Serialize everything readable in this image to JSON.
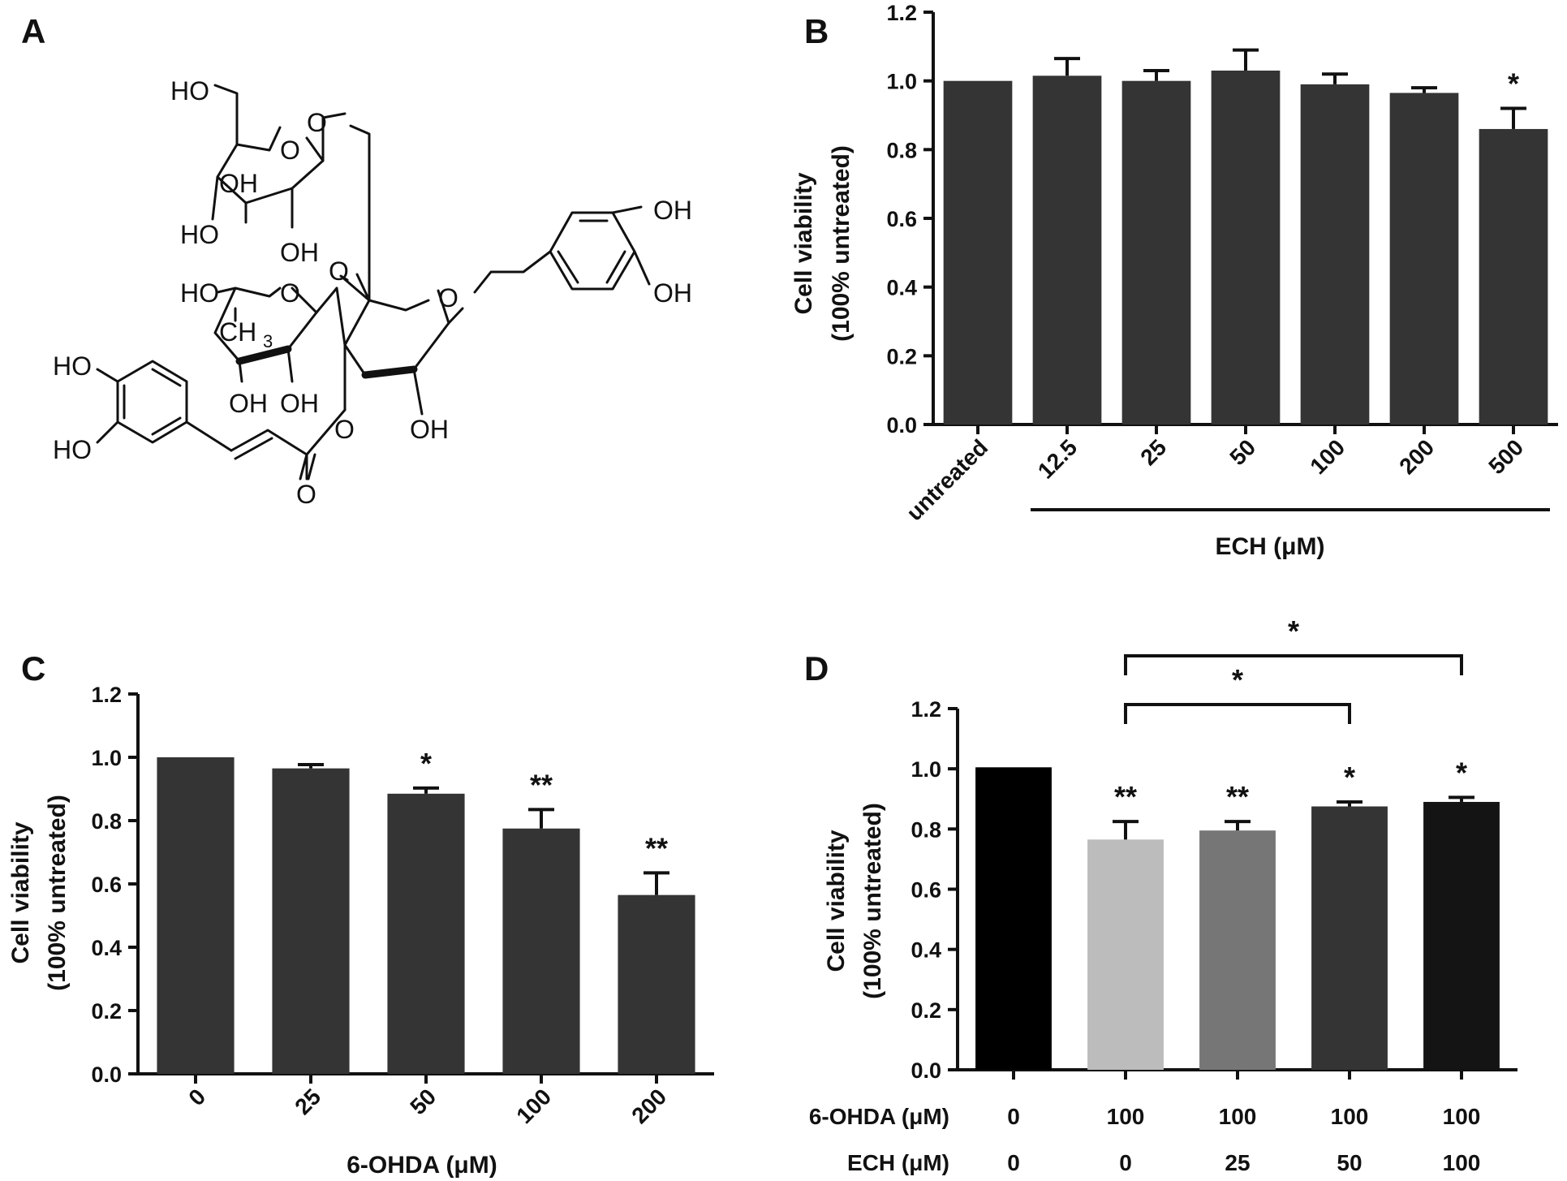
{
  "chart_data": [
    {
      "panel": "A",
      "type": "other",
      "content": "chemical structure",
      "atom_labels": [
        "HO",
        "O",
        "OH",
        "HO",
        "OH",
        "O",
        "OH",
        "OH",
        "HO",
        "O",
        "O",
        "CH",
        "3",
        "HO",
        "OH",
        "OH",
        "HO",
        "O",
        "O",
        "OH",
        "O"
      ]
    },
    {
      "panel": "B",
      "type": "bar",
      "categories": [
        "untreated",
        "12.5",
        "25",
        "50",
        "100",
        "200",
        "500"
      ],
      "group_label": "ECH (μM)",
      "values": [
        1.0,
        1.015,
        1.0,
        1.03,
        0.99,
        0.965,
        0.86
      ],
      "errors": [
        0.0,
        0.05,
        0.03,
        0.06,
        0.03,
        0.015,
        0.06
      ],
      "significance": [
        "",
        "",
        "",
        "",
        "",
        "",
        "*"
      ],
      "ylabel": [
        "Cell viability",
        "(100% untreated)"
      ],
      "ylim": [
        0,
        1.2
      ],
      "yticks": [
        "0.0",
        "0.2",
        "0.4",
        "0.6",
        "0.8",
        "1.0",
        "1.2"
      ],
      "bar_colors": [
        "#343434",
        "#343434",
        "#343434",
        "#343434",
        "#343434",
        "#343434",
        "#343434"
      ]
    },
    {
      "panel": "C",
      "type": "bar",
      "categories": [
        "0",
        "25",
        "50",
        "100",
        "200"
      ],
      "xlabel": "6-OHDA (μM)",
      "values": [
        1.0,
        0.965,
        0.885,
        0.775,
        0.565
      ],
      "errors": [
        0.0,
        0.012,
        0.018,
        0.06,
        0.07
      ],
      "significance": [
        "",
        "",
        "*",
        "**",
        "**"
      ],
      "ylabel": [
        "Cell viability",
        "(100% untreated)"
      ],
      "ylim": [
        0,
        1.2
      ],
      "yticks": [
        "0.0",
        "0.2",
        "0.4",
        "0.6",
        "0.8",
        "1.0",
        "1.2"
      ],
      "bar_colors": [
        "#343434",
        "#343434",
        "#343434",
        "#343434",
        "#343434"
      ]
    },
    {
      "panel": "D",
      "type": "bar",
      "categories": [
        "",
        "",
        "",
        "",
        ""
      ],
      "row_labels": [
        "6-OHDA (μM)",
        "ECH (μM)"
      ],
      "rows": [
        [
          "0",
          "100",
          "100",
          "100",
          "100"
        ],
        [
          "0",
          "0",
          "25",
          "50",
          "100"
        ]
      ],
      "values": [
        1.005,
        0.765,
        0.795,
        0.875,
        0.89
      ],
      "errors": [
        0.0,
        0.06,
        0.03,
        0.015,
        0.015
      ],
      "significance": [
        "",
        "**",
        "**",
        "*",
        "*"
      ],
      "brackets": [
        {
          "from": 1,
          "to": 3,
          "label": "*"
        },
        {
          "from": 1,
          "to": 4,
          "label": "*"
        }
      ],
      "ylabel": [
        "Cell viability",
        "(100% untreated)"
      ],
      "ylim": [
        0,
        1.2
      ],
      "yticks": [
        "0.0",
        "0.2",
        "0.4",
        "0.6",
        "0.8",
        "1.0",
        "1.2"
      ],
      "bar_colors": [
        "#000000",
        "#bcbcbc",
        "#767676",
        "#343434",
        "#141414"
      ]
    }
  ]
}
